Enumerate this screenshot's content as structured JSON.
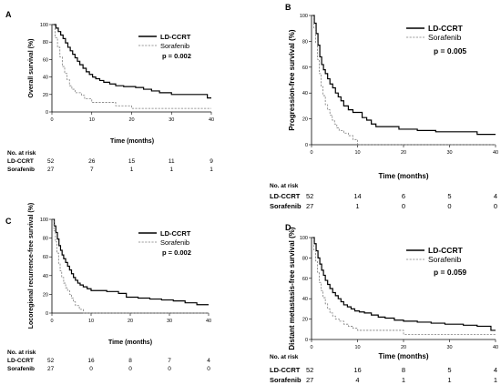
{
  "chart_data": [
    {
      "type": "line",
      "panel": "A",
      "ylabel": "Overall survival (%)",
      "xlabel": "Time (months)",
      "xlim": [
        0,
        40
      ],
      "ylim": [
        0,
        100
      ],
      "yticks": [
        0,
        20,
        40,
        60,
        80,
        100
      ],
      "xticks": [
        0,
        10,
        20,
        30,
        40
      ],
      "legend_position": "top-right",
      "p_value": "p = 0.002",
      "series": [
        {
          "name": "LD-CCRT",
          "style": "solid",
          "x": [
            0,
            1,
            1.6,
            2.2,
            2.8,
            3.4,
            4,
            4.6,
            5.2,
            5.8,
            6.4,
            7,
            7.8,
            8.6,
            9.4,
            10.2,
            11,
            12,
            13,
            14.5,
            16,
            18,
            21,
            23,
            25,
            27,
            30,
            34,
            39,
            40
          ],
          "y": [
            100,
            96,
            92,
            88,
            84,
            79,
            74,
            70,
            66,
            62,
            58,
            54,
            50,
            46,
            43,
            40,
            38,
            36,
            34,
            32,
            30,
            29,
            28,
            26,
            24,
            22,
            20,
            20,
            16,
            16
          ]
        },
        {
          "name": "Sorafenib",
          "style": "dashed",
          "x": [
            0,
            0.8,
            1.4,
            2,
            2.6,
            3.2,
            3.8,
            4.4,
            5,
            5.8,
            6.6,
            7.4,
            8.2,
            9,
            10,
            12,
            14,
            16,
            18,
            20,
            40
          ],
          "y": [
            100,
            85,
            74,
            63,
            52,
            44,
            37,
            30,
            26,
            22,
            22,
            19,
            15,
            15,
            11,
            11,
            11,
            7,
            7,
            4,
            4
          ]
        }
      ]
    },
    {
      "type": "line",
      "panel": "B",
      "ylabel": "Progression-free survival (%)",
      "xlabel": "Time (months)",
      "xlim": [
        0,
        40
      ],
      "ylim": [
        0,
        100
      ],
      "yticks": [
        0,
        20,
        40,
        60,
        80,
        100
      ],
      "xticks": [
        0,
        10,
        20,
        30,
        40
      ],
      "legend_position": "top-right",
      "p_value": "p = 0.005",
      "series": [
        {
          "name": "LD-CCRT",
          "style": "solid",
          "x": [
            0,
            0.6,
            1,
            1.4,
            1.8,
            2.2,
            2.6,
            3,
            3.5,
            4,
            4.6,
            5.2,
            5.8,
            6.4,
            7,
            8,
            9,
            10,
            11,
            12,
            13,
            14,
            16,
            19,
            23,
            27,
            30,
            34,
            36,
            40
          ],
          "y": [
            100,
            94,
            86,
            77,
            68,
            62,
            58,
            55,
            51,
            47,
            44,
            40,
            37,
            34,
            30,
            27,
            25,
            25,
            21,
            19,
            16,
            14,
            14,
            12,
            11,
            10,
            10,
            10,
            8,
            8
          ]
        },
        {
          "name": "Sorafenib",
          "style": "dashed",
          "x": [
            0,
            0.5,
            0.9,
            1.3,
            1.7,
            2.1,
            2.5,
            3,
            3.5,
            4,
            4.5,
            5,
            5.5,
            6,
            7,
            8,
            9,
            10,
            40
          ],
          "y": [
            100,
            90,
            79,
            66,
            55,
            45,
            38,
            31,
            27,
            23,
            19,
            16,
            13,
            11,
            9,
            7,
            4,
            0,
            0
          ]
        }
      ]
    },
    {
      "type": "line",
      "panel": "C",
      "ylabel": "Locoregional recurrence-free survival (%)",
      "xlabel": "Time (months)",
      "xlim": [
        0,
        40
      ],
      "ylim": [
        0,
        100
      ],
      "yticks": [
        0,
        20,
        40,
        60,
        80,
        100
      ],
      "xticks": [
        0,
        10,
        20,
        30,
        40
      ],
      "legend_position": "top-right",
      "p_value": "p = 0.002",
      "series": [
        {
          "name": "LD-CCRT",
          "style": "solid",
          "x": [
            0,
            0.6,
            1,
            1.4,
            1.8,
            2.2,
            2.6,
            3,
            3.5,
            4,
            4.5,
            5,
            5.5,
            6,
            6.6,
            7.2,
            8,
            9,
            10,
            12,
            14,
            17,
            19,
            22,
            25,
            28,
            31,
            34,
            37,
            40
          ],
          "y": [
            100,
            93,
            86,
            79,
            72,
            67,
            62,
            58,
            54,
            50,
            46,
            42,
            38,
            35,
            32,
            30,
            28,
            26,
            24,
            24,
            23,
            21,
            17,
            16,
            15,
            14,
            13,
            11,
            9,
            9
          ]
        },
        {
          "name": "Sorafenib",
          "style": "dashed",
          "x": [
            0,
            0.5,
            0.9,
            1.3,
            1.7,
            2.1,
            2.5,
            3,
            3.5,
            4,
            4.5,
            5,
            5.5,
            6,
            7,
            8,
            40
          ],
          "y": [
            100,
            88,
            76,
            64,
            53,
            45,
            38,
            32,
            27,
            24,
            20,
            16,
            12,
            8,
            4,
            0,
            0
          ]
        }
      ]
    },
    {
      "type": "line",
      "panel": "D",
      "ylabel": "Distant metastasis-free survival (%)",
      "xlabel": "Time (months)",
      "xlim": [
        0,
        40
      ],
      "ylim": [
        0,
        100
      ],
      "yticks": [
        0,
        20,
        40,
        60,
        80,
        100
      ],
      "xticks": [
        0,
        10,
        20,
        30,
        40
      ],
      "legend_position": "top-right",
      "p_value": "p = 0.059",
      "series": [
        {
          "name": "LD-CCRT",
          "style": "solid",
          "x": [
            0,
            0.6,
            1,
            1.4,
            1.8,
            2.2,
            2.6,
            3,
            3.5,
            4,
            4.6,
            5.2,
            5.8,
            6.4,
            7,
            7.8,
            8.6,
            9.4,
            10.4,
            11.5,
            13,
            14.5,
            16,
            18,
            20,
            23,
            26,
            29,
            33,
            36,
            39,
            40
          ],
          "y": [
            100,
            94,
            87,
            80,
            74,
            68,
            63,
            58,
            54,
            50,
            46,
            43,
            40,
            37,
            34,
            32,
            30,
            28,
            27,
            26,
            24,
            22,
            21,
            19,
            18,
            17,
            16,
            15,
            14,
            13,
            9,
            9
          ]
        },
        {
          "name": "Sorafenib",
          "style": "dashed",
          "x": [
            0,
            0.5,
            0.9,
            1.3,
            1.7,
            2.1,
            2.5,
            3,
            3.5,
            4,
            4.6,
            5.2,
            6,
            7,
            8,
            9,
            10,
            12,
            14,
            17,
            20,
            40
          ],
          "y": [
            100,
            88,
            77,
            66,
            56,
            48,
            41,
            35,
            30,
            26,
            23,
            20,
            18,
            15,
            13,
            11,
            9,
            9,
            9,
            9,
            5,
            5
          ]
        }
      ]
    }
  ],
  "risk_tables": [
    {
      "title": "No. at risk",
      "rows": [
        {
          "label": "LD-CCRT",
          "values": [
            "52",
            "26",
            "15",
            "11",
            "9"
          ]
        },
        {
          "label": "Sorafenib",
          "values": [
            "27",
            "7",
            "1",
            "1",
            "1"
          ]
        }
      ]
    },
    {
      "title": "No. at risk",
      "rows": [
        {
          "label": "LD-CCRT",
          "values": [
            "52",
            "14",
            "6",
            "5",
            "4"
          ]
        },
        {
          "label": "Sorafenib",
          "values": [
            "27",
            "1",
            "0",
            "0",
            "0"
          ]
        }
      ]
    },
    {
      "title": "No. at risk",
      "rows": [
        {
          "label": "LD-CCRT",
          "values": [
            "52",
            "16",
            "8",
            "7",
            "4"
          ]
        },
        {
          "label": "Sorafenib",
          "values": [
            "27",
            "0",
            "0",
            "0",
            "0"
          ]
        }
      ]
    },
    {
      "title": "No. at risk",
      "rows": [
        {
          "label": "LD-CCRT",
          "values": [
            "52",
            "16",
            "8",
            "5",
            "4"
          ]
        },
        {
          "label": "Sorafenib",
          "values": [
            "27",
            "4",
            "1",
            "1",
            "1"
          ]
        }
      ]
    }
  ],
  "colors": {
    "ld_ccrt": "#000000",
    "sorafenib": "#7f7f7f"
  }
}
